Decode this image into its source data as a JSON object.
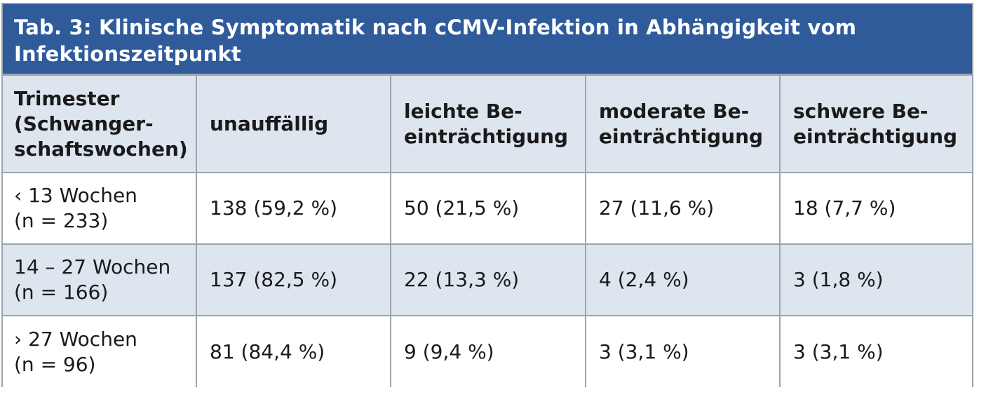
{
  "title": "Tab. 3: Klinische Symptomatik nach cCMV-Infektion in Abhängigkeit vom\nInfektionszeitpunkt",
  "colors": {
    "title_background": "#2f5b9b",
    "header_background": "#dde5ee",
    "alt_row_background": "#dde5ee",
    "border": "#9aa4ad"
  },
  "table": {
    "headers": [
      "Trimester\n(Schwanger-\nschaftswochen)",
      "unauffällig",
      "leichte Be-\neinträchtigung",
      "moderate Be-\neinträchtigung",
      "schwere Be-\neinträchtigung"
    ],
    "rows": [
      [
        "‹ 13 Wochen\n(n = 233)",
        "138 (59,2 %)",
        "50 (21,5 %)",
        "27 (11,6 %)",
        "18 (7,7 %)"
      ],
      [
        "14 – 27 Wochen\n(n = 166)",
        "137 (82,5 %)",
        "22 (13,3 %)",
        "4 (2,4 %)",
        "3 (1,8 %)"
      ],
      [
        "› 27 Wochen\n(n = 96)",
        "81 (84,4 %)",
        "9 (9,4 %)",
        "3 (3,1 %)",
        "3 (3,1 %)"
      ]
    ]
  }
}
